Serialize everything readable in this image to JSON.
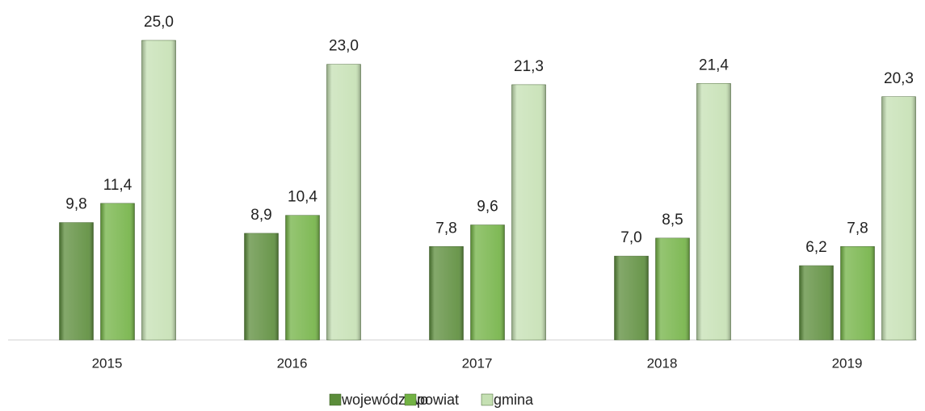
{
  "chart_data": {
    "type": "bar",
    "categories": [
      "2015",
      "2016",
      "2017",
      "2018",
      "2019"
    ],
    "series": [
      {
        "name": "województwo",
        "color": "#5b8c3a",
        "values": [
          9.8,
          8.9,
          7.8,
          7.0,
          6.2
        ],
        "value_labels": [
          "9,8",
          "8,9",
          "7,8",
          "7,0",
          "6,2"
        ]
      },
      {
        "name": "powiat",
        "color": "#72b244",
        "values": [
          11.4,
          10.4,
          9.6,
          8.5,
          7.8
        ],
        "value_labels": [
          "11,4",
          "10,4",
          "9,6",
          "8,5",
          "7,8"
        ]
      },
      {
        "name": "gmina",
        "color": "#c5e0b3",
        "values": [
          25.0,
          23.0,
          21.3,
          21.4,
          20.3
        ],
        "value_labels": [
          "25,0",
          "23,0",
          "21,3",
          "21,4",
          "20,3"
        ]
      }
    ],
    "ylim": [
      0,
      25
    ],
    "grid": false,
    "legend": "bottom"
  }
}
